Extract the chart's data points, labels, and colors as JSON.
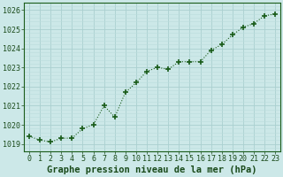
{
  "x": [
    0,
    1,
    2,
    3,
    4,
    5,
    6,
    7,
    8,
    9,
    10,
    11,
    12,
    13,
    14,
    15,
    16,
    17,
    18,
    19,
    20,
    21,
    22,
    23
  ],
  "y": [
    1019.4,
    1019.2,
    1019.1,
    1019.3,
    1019.3,
    1019.8,
    1020.0,
    1021.0,
    1020.4,
    1021.7,
    1022.2,
    1022.8,
    1023.0,
    1022.9,
    1023.3,
    1023.3,
    1023.3,
    1023.9,
    1024.2,
    1024.7,
    1025.1,
    1025.3,
    1025.7,
    1025.8
  ],
  "line_color": "#1a5c1a",
  "marker_color": "#1a5c1a",
  "bg_color": "#cce8e8",
  "major_grid_color": "#aad0d0",
  "minor_grid_color": "#bbdcdc",
  "title": "Graphe pression niveau de la mer (hPa)",
  "ylim_min": 1018.6,
  "ylim_max": 1026.4,
  "xlim_min": -0.5,
  "xlim_max": 23.5,
  "yticks": [
    1019,
    1020,
    1021,
    1022,
    1023,
    1024,
    1025,
    1026
  ],
  "xtick_labels": [
    "0",
    "1",
    "2",
    "3",
    "4",
    "5",
    "6",
    "7",
    "8",
    "9",
    "10",
    "11",
    "12",
    "13",
    "14",
    "15",
    "16",
    "17",
    "18",
    "19",
    "20",
    "21",
    "22",
    "23"
  ],
  "title_fontsize": 7.5,
  "tick_fontsize": 6,
  "title_color": "#1a4a1a",
  "tick_color": "#1a4a1a",
  "spine_color": "#1a5c1a"
}
